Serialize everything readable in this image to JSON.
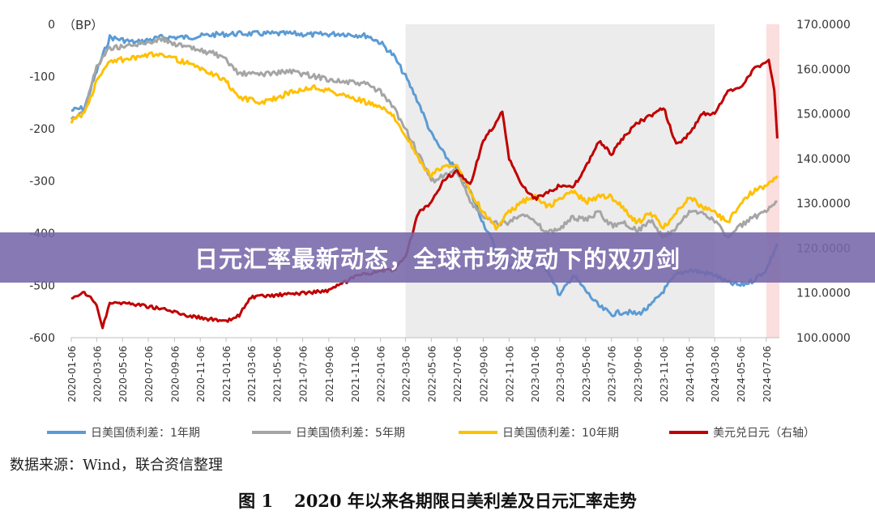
{
  "banner": {
    "title": "日元汇率最新动态，全球市场波动下的双刃剑"
  },
  "source_note": "数据来源：Wind，联合资信整理",
  "caption": {
    "number": "图 1",
    "text": "2020 年以来各期限日美利差及日元汇率走势"
  },
  "colors": {
    "spread_1y": "#5b9bd5",
    "spread_5y": "#a5a5a5",
    "spread_10y": "#ffc000",
    "usdjpy": "#c00000",
    "shade": "#ececec",
    "shade_recent": "#fbdede"
  },
  "chart_data": {
    "type": "line",
    "left_axis": {
      "label": "（BP）",
      "min": -600,
      "max": 0,
      "ticks": [
        "0",
        "-100",
        "-200",
        "-300",
        "-400",
        "-500",
        "-600"
      ]
    },
    "right_axis": {
      "min": 100,
      "max": 170,
      "ticks": [
        "170.0000",
        "160.0000",
        "150.0000",
        "140.0000",
        "130.0000",
        "120.0000",
        "110.0000",
        "100.0000"
      ]
    },
    "x_tick_labels": [
      "2020-01-06",
      "2020-03-06",
      "2020-05-06",
      "2020-07-06",
      "2020-09-06",
      "2020-11-06",
      "2021-01-06",
      "2021-03-06",
      "2021-05-06",
      "2021-07-06",
      "2021-09-06",
      "2021-11-06",
      "2022-01-06",
      "2022-03-06",
      "2022-05-06",
      "2022-07-06",
      "2022-09-06",
      "2022-11-06",
      "2023-01-06",
      "2023-03-06",
      "2023-05-06",
      "2023-07-06",
      "2023-09-06",
      "2023-11-06",
      "2024-01-06",
      "2024-03-06",
      "2024-05-06",
      "2024-07-06"
    ],
    "shaded_periods": [
      {
        "start": "2022-03-06",
        "end": "2024-03-06"
      },
      {
        "start": "2024-07-06",
        "end": "2024-08-06"
      }
    ],
    "series": [
      {
        "name": "日美国债利差：1年期",
        "axis": "left",
        "color_key": "spread_1y",
        "x": [
          "2020-01-06",
          "2020-02-06",
          "2020-03-06",
          "2020-04-06",
          "2020-06-06",
          "2020-08-06",
          "2020-10-06",
          "2020-12-06",
          "2021-02-06",
          "2021-04-06",
          "2021-06-06",
          "2021-08-06",
          "2021-10-06",
          "2021-12-06",
          "2022-01-06",
          "2022-02-06",
          "2022-03-06",
          "2022-04-06",
          "2022-05-06",
          "2022-06-06",
          "2022-07-06",
          "2022-08-06",
          "2022-09-06",
          "2022-10-06",
          "2022-11-06",
          "2022-12-06",
          "2023-01-06",
          "2023-02-06",
          "2023-03-06",
          "2023-04-06",
          "2023-05-06",
          "2023-06-06",
          "2023-07-06",
          "2023-08-06",
          "2023-09-06",
          "2023-10-06",
          "2023-11-06",
          "2023-12-06",
          "2024-01-06",
          "2024-02-06",
          "2024-03-06",
          "2024-04-06",
          "2024-05-06",
          "2024-06-06",
          "2024-07-06",
          "2024-08-01"
        ],
        "values": [
          -165,
          -160,
          -90,
          -25,
          -35,
          -25,
          -25,
          -20,
          -18,
          -18,
          -18,
          -20,
          -18,
          -22,
          -35,
          -60,
          -100,
          -150,
          -210,
          -250,
          -280,
          -320,
          -380,
          -430,
          -460,
          -470,
          -460,
          -470,
          -520,
          -480,
          -510,
          -540,
          -555,
          -550,
          -555,
          -540,
          -510,
          -480,
          -470,
          -475,
          -480,
          -495,
          -500,
          -490,
          -470,
          -420
        ]
      },
      {
        "name": "日美国债利差：5年期",
        "axis": "left",
        "color_key": "spread_5y",
        "x": [
          "2020-01-06",
          "2020-02-06",
          "2020-03-06",
          "2020-04-06",
          "2020-06-06",
          "2020-08-06",
          "2020-10-06",
          "2020-12-06",
          "2021-01-06",
          "2021-02-06",
          "2021-04-06",
          "2021-06-06",
          "2021-08-06",
          "2021-10-06",
          "2021-12-06",
          "2022-01-06",
          "2022-02-06",
          "2022-03-06",
          "2022-04-06",
          "2022-05-06",
          "2022-06-06",
          "2022-07-06",
          "2022-08-06",
          "2022-09-06",
          "2022-10-06",
          "2022-11-06",
          "2022-12-06",
          "2023-01-06",
          "2023-02-06",
          "2023-03-06",
          "2023-04-06",
          "2023-05-06",
          "2023-06-06",
          "2023-07-06",
          "2023-08-06",
          "2023-09-06",
          "2023-10-06",
          "2023-11-06",
          "2023-12-06",
          "2024-01-06",
          "2024-02-06",
          "2024-03-06",
          "2024-04-06",
          "2024-05-06",
          "2024-06-06",
          "2024-07-06",
          "2024-08-01"
        ],
        "values": [
          -180,
          -165,
          -80,
          -45,
          -40,
          -28,
          -45,
          -55,
          -70,
          -95,
          -95,
          -90,
          -100,
          -110,
          -115,
          -130,
          -160,
          -200,
          -250,
          -300,
          -290,
          -280,
          -340,
          -370,
          -380,
          -380,
          -360,
          -380,
          -400,
          -390,
          -370,
          -375,
          -360,
          -385,
          -380,
          -395,
          -375,
          -410,
          -390,
          -360,
          -360,
          -375,
          -410,
          -385,
          -370,
          -360,
          -340
        ]
      },
      {
        "name": "日美国债利差：10年期",
        "axis": "left",
        "color_key": "spread_10y",
        "x": [
          "2020-01-06",
          "2020-02-06",
          "2020-03-06",
          "2020-04-06",
          "2020-06-06",
          "2020-08-06",
          "2020-10-06",
          "2020-12-06",
          "2021-01-06",
          "2021-02-06",
          "2021-04-06",
          "2021-06-06",
          "2021-08-06",
          "2021-10-06",
          "2021-12-06",
          "2022-01-06",
          "2022-02-06",
          "2022-03-06",
          "2022-04-06",
          "2022-05-06",
          "2022-06-06",
          "2022-07-06",
          "2022-08-06",
          "2022-09-06",
          "2022-10-06",
          "2022-11-06",
          "2022-12-06",
          "2023-01-06",
          "2023-02-06",
          "2023-03-06",
          "2023-04-06",
          "2023-05-06",
          "2023-06-06",
          "2023-07-06",
          "2023-08-06",
          "2023-09-06",
          "2023-10-06",
          "2023-11-06",
          "2023-12-06",
          "2024-01-06",
          "2024-02-06",
          "2024-03-06",
          "2024-04-06",
          "2024-05-06",
          "2024-06-06",
          "2024-07-06",
          "2024-08-01"
        ],
        "values": [
          -185,
          -170,
          -110,
          -70,
          -65,
          -55,
          -75,
          -95,
          -110,
          -140,
          -150,
          -130,
          -120,
          -135,
          -150,
          -160,
          -175,
          -210,
          -260,
          -290,
          -270,
          -270,
          -320,
          -360,
          -390,
          -360,
          -340,
          -330,
          -350,
          -335,
          -320,
          -340,
          -330,
          -330,
          -355,
          -380,
          -360,
          -390,
          -360,
          -330,
          -350,
          -360,
          -380,
          -340,
          -320,
          -310,
          -290
        ]
      },
      {
        "name": "美元兑日元（右轴）",
        "axis": "right",
        "color_key": "usdjpy",
        "x": [
          "2020-01-06",
          "2020-02-06",
          "2020-03-06",
          "2020-03-20",
          "2020-04-06",
          "2020-06-06",
          "2020-08-06",
          "2020-10-06",
          "2020-12-06",
          "2021-01-06",
          "2021-02-06",
          "2021-03-06",
          "2021-05-06",
          "2021-07-06",
          "2021-09-06",
          "2021-11-06",
          "2022-01-06",
          "2022-02-06",
          "2022-03-06",
          "2022-04-06",
          "2022-05-06",
          "2022-06-06",
          "2022-07-06",
          "2022-08-06",
          "2022-09-06",
          "2022-10-06",
          "2022-10-21",
          "2022-11-06",
          "2022-12-06",
          "2023-01-06",
          "2023-02-06",
          "2023-03-06",
          "2023-04-06",
          "2023-05-06",
          "2023-06-06",
          "2023-07-06",
          "2023-08-06",
          "2023-09-06",
          "2023-10-06",
          "2023-11-06",
          "2023-12-06",
          "2024-01-06",
          "2024-02-06",
          "2024-03-06",
          "2024-04-06",
          "2024-05-06",
          "2024-06-06",
          "2024-07-06",
          "2024-07-12",
          "2024-07-25",
          "2024-08-01"
        ],
        "values": [
          108.5,
          110,
          107.5,
          102,
          108,
          107.5,
          106.5,
          105,
          104,
          103.5,
          105,
          109,
          109.5,
          110,
          110.5,
          113.5,
          115,
          115,
          118,
          128,
          130,
          135.5,
          137,
          134,
          144,
          148,
          150.5,
          140,
          134,
          131,
          132.5,
          134,
          133.5,
          138,
          144,
          141,
          145,
          148,
          149.5,
          151.5,
          143,
          145.5,
          150,
          150,
          155,
          156,
          160,
          161.5,
          162,
          155,
          144.5
        ]
      }
    ],
    "legend": {
      "position": "bottom"
    }
  }
}
